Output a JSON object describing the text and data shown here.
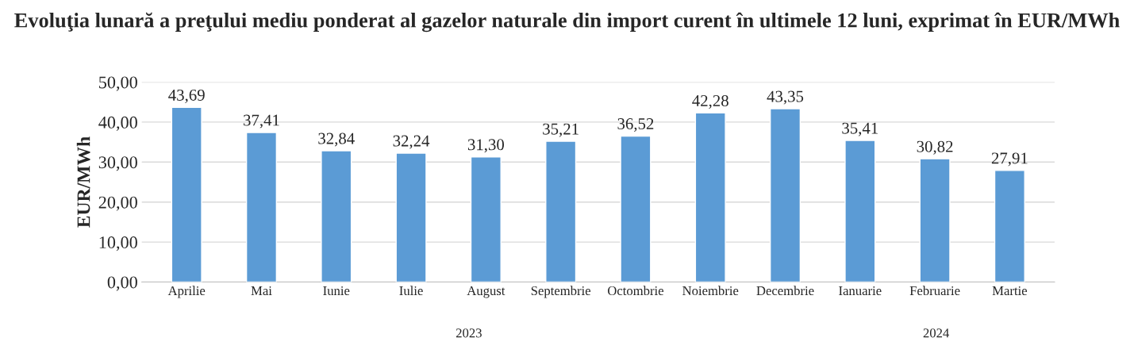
{
  "chart_data": {
    "type": "bar",
    "title": "Evoluţia lunară a preţului mediu ponderat al gazelor naturale din import curent în ultimele 12 luni, exprimat în EUR/MWh",
    "ylabel": "EUR/MWh",
    "categories": [
      "Aprilie",
      "Mai",
      "Iunie",
      "Iulie",
      "August",
      "Septembrie",
      "Octombrie",
      "Noiembrie",
      "Decembrie",
      "Ianuarie",
      "Februarie",
      "Martie"
    ],
    "values": [
      43.69,
      37.41,
      32.84,
      32.24,
      31.3,
      35.21,
      36.52,
      42.28,
      43.35,
      35.41,
      30.82,
      27.91
    ],
    "value_labels": [
      "43,69",
      "37,41",
      "32,84",
      "32,24",
      "31,30",
      "35,21",
      "36,52",
      "42,28",
      "43,35",
      "35,41",
      "30,82",
      "27,91"
    ],
    "color": "#5b9bd5",
    "ylim": [
      0,
      50
    ],
    "yticks": [
      {
        "value": 0,
        "label": "0,00"
      },
      {
        "value": 10,
        "label": "10,00"
      },
      {
        "value": 20,
        "label": "20,00"
      },
      {
        "value": 30,
        "label": "30,00"
      },
      {
        "value": 40,
        "label": "40,00"
      },
      {
        "value": 50,
        "label": "50,00"
      }
    ],
    "grid": "y",
    "annotations": [
      "2023",
      "2024"
    ]
  }
}
